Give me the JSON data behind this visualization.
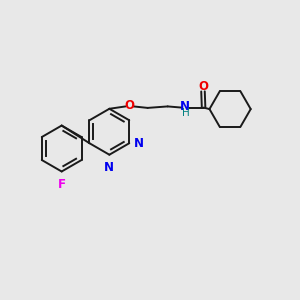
{
  "background_color": "#e8e8e8",
  "bond_color": "#1a1a1a",
  "N_color": "#0000ee",
  "O_color": "#ee0000",
  "F_color": "#ee00ee",
  "H_color": "#008080",
  "figsize": [
    3.0,
    3.0
  ],
  "dpi": 100,
  "xlim": [
    0,
    10
  ],
  "ylim": [
    0,
    10
  ]
}
